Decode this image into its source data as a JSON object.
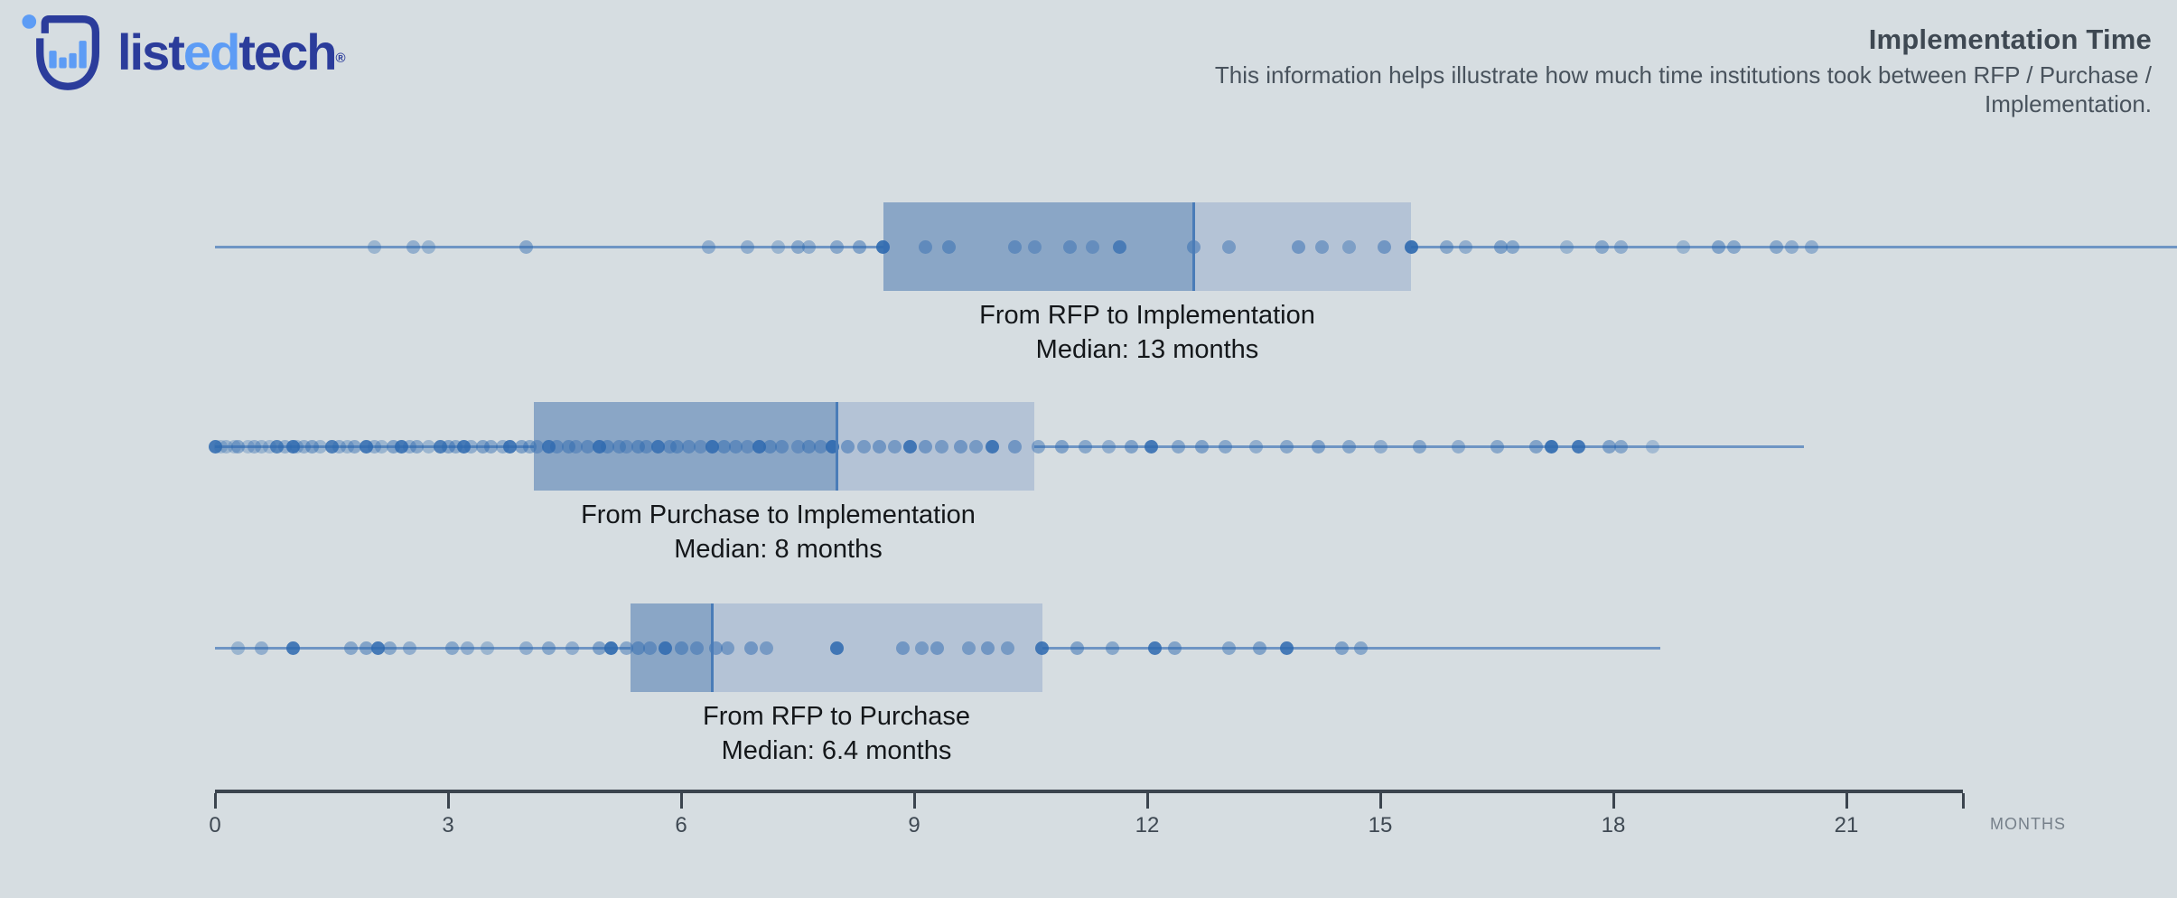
{
  "logo": {
    "word_parts": [
      {
        "text": "list",
        "color": "#2b3c9b"
      },
      {
        "text": "ed",
        "color": "#5d9cf5"
      },
      {
        "text": "tech",
        "color": "#2b3c9b"
      }
    ],
    "registered": "®"
  },
  "header": {
    "title": "Implementation Time",
    "subtitle": "This information helps illustrate how much time institutions took between RFP / Purchase / Implementation."
  },
  "colors": {
    "background": "#d6dde1",
    "box_dark": "#8aa6c6",
    "box_light": "#b4c3d6",
    "whisker": "#5d88be",
    "median_line": "#4a7cb8",
    "dot": "#2d69af",
    "axis": "#3b444e",
    "axis_label": "#3f4953",
    "months_label": "#76808a",
    "title": "#3e4852",
    "subtitle": "#49535d",
    "series_label": "#14171a",
    "logo_dark": "#2b3c9b",
    "logo_light": "#5d9cf5"
  },
  "chart_data": {
    "type": "boxplot",
    "unit": "months",
    "axis": {
      "min": 0,
      "end_month": 22.5,
      "ticks": [
        0,
        3,
        6,
        9,
        12,
        15,
        18,
        21
      ],
      "unit_label": "MONTHS"
    },
    "series": [
      {
        "label": "From RFP to Implementation",
        "median_label": "Median: 13 months",
        "median": 13,
        "box": {
          "q1": 8.6,
          "median_line": 12.6,
          "q3": 15.4
        },
        "whisker": [
          0,
          25.3
        ],
        "label_x_month": 12.0,
        "points": [
          [
            2.05,
            0.35
          ],
          [
            2.55,
            0.4
          ],
          [
            2.75,
            0.35
          ],
          [
            4.0,
            0.45
          ],
          [
            6.35,
            0.4
          ],
          [
            6.85,
            0.4
          ],
          [
            7.25,
            0.35
          ],
          [
            7.5,
            0.45
          ],
          [
            7.65,
            0.4
          ],
          [
            8.0,
            0.45
          ],
          [
            8.3,
            0.5
          ],
          [
            8.6,
            0.9
          ],
          [
            9.15,
            0.45
          ],
          [
            9.45,
            0.5
          ],
          [
            10.3,
            0.45
          ],
          [
            10.55,
            0.4
          ],
          [
            11.0,
            0.45
          ],
          [
            11.3,
            0.4
          ],
          [
            11.65,
            0.7
          ],
          [
            12.6,
            0.5
          ],
          [
            13.05,
            0.45
          ],
          [
            13.95,
            0.5
          ],
          [
            14.25,
            0.45
          ],
          [
            14.6,
            0.4
          ],
          [
            15.05,
            0.5
          ],
          [
            15.4,
            0.9
          ],
          [
            15.85,
            0.45
          ],
          [
            16.1,
            0.4
          ],
          [
            16.55,
            0.5
          ],
          [
            16.7,
            0.45
          ],
          [
            17.4,
            0.35
          ],
          [
            17.85,
            0.45
          ],
          [
            18.1,
            0.4
          ],
          [
            18.9,
            0.35
          ],
          [
            19.35,
            0.5
          ],
          [
            19.55,
            0.45
          ],
          [
            20.1,
            0.45
          ],
          [
            20.3,
            0.4
          ],
          [
            20.55,
            0.4
          ]
        ]
      },
      {
        "label": "From Purchase to Implementation",
        "median_label": "Median: 8 months",
        "median": 8,
        "box": {
          "q1": 4.1,
          "median_line": 8.0,
          "q3": 10.55
        },
        "whisker": [
          0,
          20.45
        ],
        "label_x_month": 7.25,
        "points": [
          [
            0.0,
            0.85
          ],
          [
            0.08,
            0.3
          ],
          [
            0.15,
            0.35
          ],
          [
            0.25,
            0.3
          ],
          [
            0.3,
            0.45
          ],
          [
            0.42,
            0.3
          ],
          [
            0.5,
            0.4
          ],
          [
            0.6,
            0.35
          ],
          [
            0.7,
            0.3
          ],
          [
            0.8,
            0.75
          ],
          [
            0.9,
            0.4
          ],
          [
            1.0,
            0.85
          ],
          [
            1.05,
            0.35
          ],
          [
            1.15,
            0.4
          ],
          [
            1.25,
            0.5
          ],
          [
            1.35,
            0.35
          ],
          [
            1.5,
            0.8
          ],
          [
            1.6,
            0.4
          ],
          [
            1.7,
            0.35
          ],
          [
            1.8,
            0.45
          ],
          [
            1.95,
            0.85
          ],
          [
            2.05,
            0.4
          ],
          [
            2.15,
            0.35
          ],
          [
            2.3,
            0.5
          ],
          [
            2.4,
            0.85
          ],
          [
            2.5,
            0.4
          ],
          [
            2.6,
            0.45
          ],
          [
            2.75,
            0.35
          ],
          [
            2.9,
            0.8
          ],
          [
            3.0,
            0.5
          ],
          [
            3.1,
            0.45
          ],
          [
            3.2,
            0.85
          ],
          [
            3.3,
            0.4
          ],
          [
            3.45,
            0.5
          ],
          [
            3.55,
            0.45
          ],
          [
            3.7,
            0.4
          ],
          [
            3.8,
            0.85
          ],
          [
            3.95,
            0.5
          ],
          [
            4.05,
            0.45
          ],
          [
            4.15,
            0.4
          ],
          [
            4.3,
            0.8
          ],
          [
            4.4,
            0.45
          ],
          [
            4.55,
            0.5
          ],
          [
            4.65,
            0.4
          ],
          [
            4.8,
            0.45
          ],
          [
            4.95,
            0.85
          ],
          [
            5.05,
            0.5
          ],
          [
            5.2,
            0.45
          ],
          [
            5.3,
            0.4
          ],
          [
            5.45,
            0.5
          ],
          [
            5.55,
            0.45
          ],
          [
            5.7,
            0.8
          ],
          [
            5.85,
            0.45
          ],
          [
            5.95,
            0.5
          ],
          [
            6.1,
            0.45
          ],
          [
            6.25,
            0.4
          ],
          [
            6.4,
            0.85
          ],
          [
            6.55,
            0.5
          ],
          [
            6.7,
            0.45
          ],
          [
            6.85,
            0.4
          ],
          [
            7.0,
            0.85
          ],
          [
            7.15,
            0.5
          ],
          [
            7.3,
            0.45
          ],
          [
            7.5,
            0.4
          ],
          [
            7.65,
            0.5
          ],
          [
            7.8,
            0.45
          ],
          [
            7.95,
            0.9
          ],
          [
            8.15,
            0.5
          ],
          [
            8.35,
            0.45
          ],
          [
            8.55,
            0.5
          ],
          [
            8.75,
            0.45
          ],
          [
            8.95,
            0.85
          ],
          [
            9.15,
            0.5
          ],
          [
            9.35,
            0.45
          ],
          [
            9.6,
            0.5
          ],
          [
            9.8,
            0.45
          ],
          [
            10.0,
            0.85
          ],
          [
            10.3,
            0.5
          ],
          [
            10.6,
            0.45
          ],
          [
            10.9,
            0.5
          ],
          [
            11.2,
            0.45
          ],
          [
            11.5,
            0.4
          ],
          [
            11.8,
            0.5
          ],
          [
            12.05,
            0.85
          ],
          [
            12.4,
            0.45
          ],
          [
            12.7,
            0.5
          ],
          [
            13.0,
            0.45
          ],
          [
            13.4,
            0.4
          ],
          [
            13.8,
            0.45
          ],
          [
            14.2,
            0.5
          ],
          [
            14.6,
            0.45
          ],
          [
            15.0,
            0.4
          ],
          [
            15.5,
            0.45
          ],
          [
            16.0,
            0.4
          ],
          [
            16.5,
            0.45
          ],
          [
            17.0,
            0.5
          ],
          [
            17.2,
            0.9
          ],
          [
            17.55,
            0.85
          ],
          [
            17.95,
            0.5
          ],
          [
            18.1,
            0.45
          ],
          [
            18.5,
            0.3
          ]
        ]
      },
      {
        "label": "From RFP to Purchase",
        "median_label": "Median: 6.4 months",
        "median": 6.4,
        "box": {
          "q1": 5.35,
          "median_line": 6.4,
          "q3": 10.65
        },
        "whisker": [
          0,
          18.6
        ],
        "label_x_month": 8.0,
        "points": [
          [
            0.3,
            0.35
          ],
          [
            0.6,
            0.4
          ],
          [
            1.0,
            0.85
          ],
          [
            1.75,
            0.45
          ],
          [
            1.95,
            0.5
          ],
          [
            2.1,
            0.85
          ],
          [
            2.25,
            0.45
          ],
          [
            2.5,
            0.4
          ],
          [
            3.05,
            0.45
          ],
          [
            3.25,
            0.4
          ],
          [
            3.5,
            0.35
          ],
          [
            4.0,
            0.4
          ],
          [
            4.3,
            0.45
          ],
          [
            4.6,
            0.4
          ],
          [
            4.95,
            0.5
          ],
          [
            5.1,
            0.9
          ],
          [
            5.3,
            0.45
          ],
          [
            5.45,
            0.5
          ],
          [
            5.6,
            0.45
          ],
          [
            5.8,
            0.85
          ],
          [
            6.0,
            0.5
          ],
          [
            6.2,
            0.45
          ],
          [
            6.45,
            0.5
          ],
          [
            6.6,
            0.45
          ],
          [
            6.9,
            0.5
          ],
          [
            7.1,
            0.45
          ],
          [
            8.0,
            0.85
          ],
          [
            8.85,
            0.5
          ],
          [
            9.1,
            0.45
          ],
          [
            9.3,
            0.5
          ],
          [
            9.7,
            0.45
          ],
          [
            9.95,
            0.5
          ],
          [
            10.2,
            0.45
          ],
          [
            10.65,
            0.85
          ],
          [
            11.1,
            0.5
          ],
          [
            11.55,
            0.45
          ],
          [
            12.1,
            0.85
          ],
          [
            12.35,
            0.5
          ],
          [
            13.05,
            0.45
          ],
          [
            13.45,
            0.5
          ],
          [
            13.8,
            0.85
          ],
          [
            14.5,
            0.5
          ],
          [
            14.75,
            0.45
          ]
        ]
      }
    ]
  }
}
